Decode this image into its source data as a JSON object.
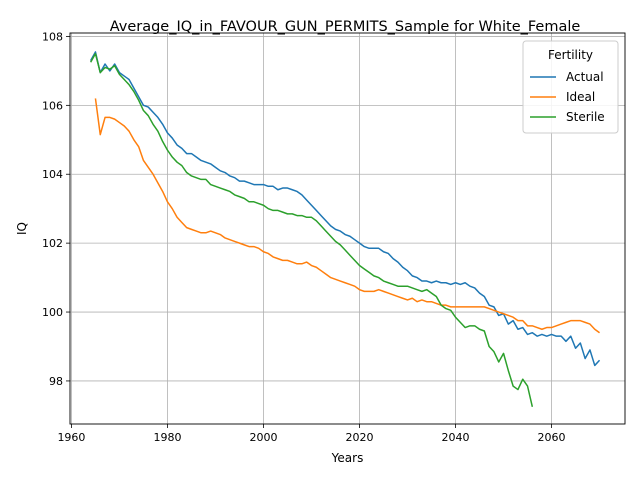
{
  "chart_data": {
    "type": "line",
    "title": "Average_IQ_in_FAVOUR_GUN_PERMITS_Sample for White_Female",
    "xlabel": "Years",
    "ylabel": "IQ",
    "xlim": [
      1959.7,
      2075.3
    ],
    "ylim": [
      96.75,
      108.1
    ],
    "xticks": [
      1960,
      1980,
      2000,
      2020,
      2040,
      2060
    ],
    "yticks": [
      98,
      100,
      102,
      104,
      106,
      108
    ],
    "grid": true,
    "legend": {
      "title": "Fertility",
      "placement": "top-right"
    },
    "series": [
      {
        "name": "Actual",
        "color": "#1f77b4",
        "points": [
          [
            1964,
            107.3
          ],
          [
            1965,
            107.55
          ],
          [
            1966,
            106.95
          ],
          [
            1967,
            107.2
          ],
          [
            1968,
            107.0
          ],
          [
            1969,
            107.2
          ],
          [
            1970,
            106.95
          ],
          [
            1971,
            106.85
          ],
          [
            1972,
            106.75
          ],
          [
            1973,
            106.5
          ],
          [
            1974,
            106.25
          ],
          [
            1975,
            106.0
          ],
          [
            1976,
            105.95
          ],
          [
            1977,
            105.8
          ],
          [
            1978,
            105.65
          ],
          [
            1979,
            105.45
          ],
          [
            1980,
            105.2
          ],
          [
            1981,
            105.05
          ],
          [
            1982,
            104.85
          ],
          [
            1983,
            104.75
          ],
          [
            1984,
            104.6
          ],
          [
            1985,
            104.6
          ],
          [
            1986,
            104.5
          ],
          [
            1987,
            104.4
          ],
          [
            1988,
            104.35
          ],
          [
            1989,
            104.3
          ],
          [
            1990,
            104.2
          ],
          [
            1991,
            104.1
          ],
          [
            1992,
            104.05
          ],
          [
            1993,
            103.95
          ],
          [
            1994,
            103.9
          ],
          [
            1995,
            103.8
          ],
          [
            1996,
            103.8
          ],
          [
            1997,
            103.75
          ],
          [
            1998,
            103.7
          ],
          [
            1999,
            103.7
          ],
          [
            2000,
            103.7
          ],
          [
            2001,
            103.65
          ],
          [
            2002,
            103.65
          ],
          [
            2003,
            103.55
          ],
          [
            2004,
            103.6
          ],
          [
            2005,
            103.6
          ],
          [
            2006,
            103.55
          ],
          [
            2007,
            103.5
          ],
          [
            2008,
            103.4
          ],
          [
            2009,
            103.25
          ],
          [
            2010,
            103.1
          ],
          [
            2011,
            102.95
          ],
          [
            2012,
            102.8
          ],
          [
            2013,
            102.65
          ],
          [
            2014,
            102.5
          ],
          [
            2015,
            102.4
          ],
          [
            2016,
            102.35
          ],
          [
            2017,
            102.25
          ],
          [
            2018,
            102.2
          ],
          [
            2019,
            102.1
          ],
          [
            2020,
            102.0
          ],
          [
            2021,
            101.9
          ],
          [
            2022,
            101.85
          ],
          [
            2023,
            101.85
          ],
          [
            2024,
            101.85
          ],
          [
            2025,
            101.75
          ],
          [
            2026,
            101.7
          ],
          [
            2027,
            101.55
          ],
          [
            2028,
            101.45
          ],
          [
            2029,
            101.3
          ],
          [
            2030,
            101.2
          ],
          [
            2031,
            101.05
          ],
          [
            2032,
            101.0
          ],
          [
            2033,
            100.9
          ],
          [
            2034,
            100.9
          ],
          [
            2035,
            100.85
          ],
          [
            2036,
            100.9
          ],
          [
            2037,
            100.85
          ],
          [
            2038,
            100.85
          ],
          [
            2039,
            100.8
          ],
          [
            2040,
            100.85
          ],
          [
            2041,
            100.8
          ],
          [
            2042,
            100.85
          ],
          [
            2043,
            100.75
          ],
          [
            2044,
            100.7
          ],
          [
            2045,
            100.55
          ],
          [
            2046,
            100.45
          ],
          [
            2047,
            100.2
          ],
          [
            2048,
            100.15
          ],
          [
            2049,
            99.9
          ],
          [
            2050,
            99.95
          ],
          [
            2051,
            99.65
          ],
          [
            2052,
            99.75
          ],
          [
            2053,
            99.5
          ],
          [
            2054,
            99.55
          ],
          [
            2055,
            99.35
          ],
          [
            2056,
            99.4
          ],
          [
            2057,
            99.3
          ],
          [
            2058,
            99.35
          ],
          [
            2059,
            99.3
          ],
          [
            2060,
            99.35
          ],
          [
            2061,
            99.3
          ],
          [
            2062,
            99.3
          ],
          [
            2063,
            99.15
          ],
          [
            2064,
            99.3
          ],
          [
            2065,
            98.95
          ],
          [
            2066,
            99.1
          ],
          [
            2067,
            98.65
          ],
          [
            2068,
            98.9
          ],
          [
            2069,
            98.45
          ],
          [
            2070,
            98.6
          ]
        ]
      },
      {
        "name": "Ideal",
        "color": "#ff7f0e",
        "points": [
          [
            1965,
            106.2
          ],
          [
            1966,
            105.15
          ],
          [
            1967,
            105.65
          ],
          [
            1968,
            105.65
          ],
          [
            1969,
            105.6
          ],
          [
            1970,
            105.5
          ],
          [
            1971,
            105.4
          ],
          [
            1972,
            105.25
          ],
          [
            1973,
            105.0
          ],
          [
            1974,
            104.8
          ],
          [
            1975,
            104.4
          ],
          [
            1976,
            104.2
          ],
          [
            1977,
            104.0
          ],
          [
            1978,
            103.75
          ],
          [
            1979,
            103.5
          ],
          [
            1980,
            103.2
          ],
          [
            1981,
            103.0
          ],
          [
            1982,
            102.75
          ],
          [
            1983,
            102.6
          ],
          [
            1984,
            102.45
          ],
          [
            1985,
            102.4
          ],
          [
            1986,
            102.35
          ],
          [
            1987,
            102.3
          ],
          [
            1988,
            102.3
          ],
          [
            1989,
            102.35
          ],
          [
            1990,
            102.3
          ],
          [
            1991,
            102.25
          ],
          [
            1992,
            102.15
          ],
          [
            1993,
            102.1
          ],
          [
            1994,
            102.05
          ],
          [
            1995,
            102.0
          ],
          [
            1996,
            101.95
          ],
          [
            1997,
            101.9
          ],
          [
            1998,
            101.9
          ],
          [
            1999,
            101.85
          ],
          [
            2000,
            101.75
          ],
          [
            2001,
            101.7
          ],
          [
            2002,
            101.6
          ],
          [
            2003,
            101.55
          ],
          [
            2004,
            101.5
          ],
          [
            2005,
            101.5
          ],
          [
            2006,
            101.45
          ],
          [
            2007,
            101.4
          ],
          [
            2008,
            101.4
          ],
          [
            2009,
            101.45
          ],
          [
            2010,
            101.35
          ],
          [
            2011,
            101.3
          ],
          [
            2012,
            101.2
          ],
          [
            2013,
            101.1
          ],
          [
            2014,
            101.0
          ],
          [
            2015,
            100.95
          ],
          [
            2016,
            100.9
          ],
          [
            2017,
            100.85
          ],
          [
            2018,
            100.8
          ],
          [
            2019,
            100.75
          ],
          [
            2020,
            100.65
          ],
          [
            2021,
            100.6
          ],
          [
            2022,
            100.6
          ],
          [
            2023,
            100.6
          ],
          [
            2024,
            100.65
          ],
          [
            2025,
            100.6
          ],
          [
            2026,
            100.55
          ],
          [
            2027,
            100.5
          ],
          [
            2028,
            100.45
          ],
          [
            2029,
            100.4
          ],
          [
            2030,
            100.35
          ],
          [
            2031,
            100.4
          ],
          [
            2032,
            100.3
          ],
          [
            2033,
            100.35
          ],
          [
            2034,
            100.3
          ],
          [
            2035,
            100.3
          ],
          [
            2036,
            100.25
          ],
          [
            2037,
            100.2
          ],
          [
            2038,
            100.2
          ],
          [
            2039,
            100.15
          ],
          [
            2040,
            100.15
          ],
          [
            2041,
            100.15
          ],
          [
            2042,
            100.15
          ],
          [
            2043,
            100.15
          ],
          [
            2044,
            100.15
          ],
          [
            2045,
            100.15
          ],
          [
            2046,
            100.15
          ],
          [
            2047,
            100.1
          ],
          [
            2048,
            100.05
          ],
          [
            2049,
            100.0
          ],
          [
            2050,
            99.95
          ],
          [
            2051,
            99.9
          ],
          [
            2052,
            99.85
          ],
          [
            2053,
            99.75
          ],
          [
            2054,
            99.75
          ],
          [
            2055,
            99.6
          ],
          [
            2056,
            99.6
          ],
          [
            2057,
            99.55
          ],
          [
            2058,
            99.5
          ],
          [
            2059,
            99.55
          ],
          [
            2060,
            99.55
          ],
          [
            2061,
            99.6
          ],
          [
            2062,
            99.65
          ],
          [
            2063,
            99.7
          ],
          [
            2064,
            99.75
          ],
          [
            2065,
            99.75
          ],
          [
            2066,
            99.75
          ],
          [
            2067,
            99.7
          ],
          [
            2068,
            99.65
          ],
          [
            2069,
            99.5
          ],
          [
            2070,
            99.4
          ]
        ]
      },
      {
        "name": "Sterile",
        "color": "#2ca02c",
        "points": [
          [
            1964,
            107.25
          ],
          [
            1965,
            107.5
          ],
          [
            1966,
            106.95
          ],
          [
            1967,
            107.1
          ],
          [
            1968,
            107.05
          ],
          [
            1969,
            107.15
          ],
          [
            1970,
            106.9
          ],
          [
            1971,
            106.75
          ],
          [
            1972,
            106.6
          ],
          [
            1973,
            106.4
          ],
          [
            1974,
            106.15
          ],
          [
            1975,
            105.85
          ],
          [
            1976,
            105.7
          ],
          [
            1977,
            105.45
          ],
          [
            1978,
            105.25
          ],
          [
            1979,
            104.95
          ],
          [
            1980,
            104.7
          ],
          [
            1981,
            104.5
          ],
          [
            1982,
            104.35
          ],
          [
            1983,
            104.25
          ],
          [
            1984,
            104.05
          ],
          [
            1985,
            103.95
          ],
          [
            1986,
            103.9
          ],
          [
            1987,
            103.85
          ],
          [
            1988,
            103.85
          ],
          [
            1989,
            103.7
          ],
          [
            1990,
            103.65
          ],
          [
            1991,
            103.6
          ],
          [
            1992,
            103.55
          ],
          [
            1993,
            103.5
          ],
          [
            1994,
            103.4
          ],
          [
            1995,
            103.35
          ],
          [
            1996,
            103.3
          ],
          [
            1997,
            103.2
          ],
          [
            1998,
            103.2
          ],
          [
            1999,
            103.15
          ],
          [
            2000,
            103.1
          ],
          [
            2001,
            103.0
          ],
          [
            2002,
            102.95
          ],
          [
            2003,
            102.95
          ],
          [
            2004,
            102.9
          ],
          [
            2005,
            102.85
          ],
          [
            2006,
            102.85
          ],
          [
            2007,
            102.8
          ],
          [
            2008,
            102.8
          ],
          [
            2009,
            102.75
          ],
          [
            2010,
            102.75
          ],
          [
            2011,
            102.65
          ],
          [
            2012,
            102.5
          ],
          [
            2013,
            102.35
          ],
          [
            2014,
            102.2
          ],
          [
            2015,
            102.05
          ],
          [
            2016,
            101.95
          ],
          [
            2017,
            101.8
          ],
          [
            2018,
            101.65
          ],
          [
            2019,
            101.5
          ],
          [
            2020,
            101.35
          ],
          [
            2021,
            101.25
          ],
          [
            2022,
            101.15
          ],
          [
            2023,
            101.05
          ],
          [
            2024,
            101.0
          ],
          [
            2025,
            100.9
          ],
          [
            2026,
            100.85
          ],
          [
            2027,
            100.8
          ],
          [
            2028,
            100.75
          ],
          [
            2029,
            100.75
          ],
          [
            2030,
            100.75
          ],
          [
            2031,
            100.7
          ],
          [
            2032,
            100.65
          ],
          [
            2033,
            100.6
          ],
          [
            2034,
            100.65
          ],
          [
            2035,
            100.55
          ],
          [
            2036,
            100.45
          ],
          [
            2037,
            100.2
          ],
          [
            2038,
            100.1
          ],
          [
            2039,
            100.05
          ],
          [
            2040,
            99.85
          ],
          [
            2041,
            99.7
          ],
          [
            2042,
            99.55
          ],
          [
            2043,
            99.6
          ],
          [
            2044,
            99.6
          ],
          [
            2045,
            99.5
          ],
          [
            2046,
            99.45
          ],
          [
            2047,
            99.0
          ],
          [
            2048,
            98.85
          ],
          [
            2049,
            98.55
          ],
          [
            2050,
            98.8
          ],
          [
            2051,
            98.3
          ],
          [
            2052,
            97.85
          ],
          [
            2053,
            97.75
          ],
          [
            2054,
            98.05
          ],
          [
            2055,
            97.85
          ],
          [
            2056,
            97.25
          ]
        ]
      }
    ]
  }
}
